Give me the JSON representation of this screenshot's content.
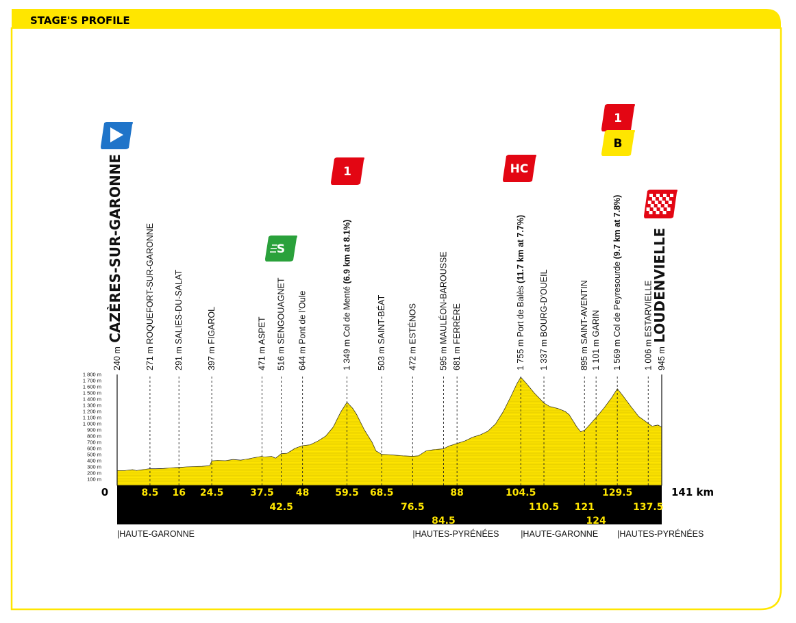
{
  "header": {
    "title": "STAGE'S PROFILE"
  },
  "colors": {
    "accent": "#ffe600",
    "profile_fill": "#ffe600",
    "strip": "#000000",
    "cat1": "#e30613",
    "hc": "#e30613",
    "sprint": "#2aa13b",
    "start": "#1f74c9",
    "bonus": "#ffe600"
  },
  "chart_data": {
    "type": "area",
    "title": "",
    "xlabel": "km",
    "ylabel": "m",
    "xlim": [
      0,
      141
    ],
    "ylim": [
      0,
      1800
    ],
    "yticks": [
      "100 m",
      "200 m",
      "300 m",
      "400 m",
      "500 m",
      "600 m",
      "700 m",
      "800 m",
      "900 m",
      "1 000 m",
      "1 100 m",
      "1 200 m",
      "1 300 m",
      "1 400 m",
      "1 500 m",
      "1 600 m",
      "1 700 m",
      "1 800 m"
    ],
    "start_km_label": "0",
    "end_km_label": "141 km",
    "profile": [
      [
        0,
        240
      ],
      [
        2,
        240
      ],
      [
        4,
        255
      ],
      [
        5,
        240
      ],
      [
        6,
        250
      ],
      [
        8.5,
        271
      ],
      [
        10,
        270
      ],
      [
        12,
        275
      ],
      [
        14,
        285
      ],
      [
        16,
        291
      ],
      [
        18,
        300
      ],
      [
        20,
        305
      ],
      [
        22,
        310
      ],
      [
        24,
        320
      ],
      [
        24.5,
        397
      ],
      [
        26,
        405
      ],
      [
        28,
        400
      ],
      [
        30,
        420
      ],
      [
        32,
        410
      ],
      [
        34,
        430
      ],
      [
        36,
        455
      ],
      [
        37.5,
        471
      ],
      [
        38,
        460
      ],
      [
        40,
        470
      ],
      [
        41,
        440
      ],
      [
        42.5,
        516
      ],
      [
        44,
        520
      ],
      [
        46,
        600
      ],
      [
        48,
        644
      ],
      [
        50,
        660
      ],
      [
        52,
        720
      ],
      [
        54,
        800
      ],
      [
        56,
        950
      ],
      [
        57,
        1080
      ],
      [
        58,
        1200
      ],
      [
        59.5,
        1349
      ],
      [
        61,
        1250
      ],
      [
        62,
        1150
      ],
      [
        64,
        900
      ],
      [
        66,
        700
      ],
      [
        67,
        560
      ],
      [
        68.5,
        503
      ],
      [
        70,
        500
      ],
      [
        72,
        490
      ],
      [
        74,
        480
      ],
      [
        76.5,
        472
      ],
      [
        78,
        480
      ],
      [
        80,
        560
      ],
      [
        82,
        580
      ],
      [
        84.5,
        595
      ],
      [
        86,
        640
      ],
      [
        88,
        681
      ],
      [
        90,
        720
      ],
      [
        92,
        780
      ],
      [
        94,
        820
      ],
      [
        96,
        880
      ],
      [
        98,
        1000
      ],
      [
        100,
        1200
      ],
      [
        102,
        1450
      ],
      [
        103.5,
        1650
      ],
      [
        104.5,
        1755
      ],
      [
        106,
        1650
      ],
      [
        108,
        1500
      ],
      [
        110.5,
        1337
      ],
      [
        112,
        1280
      ],
      [
        114,
        1250
      ],
      [
        116,
        1200
      ],
      [
        117,
        1150
      ],
      [
        118,
        1050
      ],
      [
        119,
        950
      ],
      [
        120,
        870
      ],
      [
        121,
        895
      ],
      [
        122,
        960
      ],
      [
        124,
        1101
      ],
      [
        126,
        1250
      ],
      [
        128,
        1420
      ],
      [
        129.5,
        1569
      ],
      [
        131,
        1450
      ],
      [
        133,
        1280
      ],
      [
        135,
        1120
      ],
      [
        137.5,
        1006
      ],
      [
        138.5,
        960
      ],
      [
        140,
        980
      ],
      [
        141,
        945
      ]
    ],
    "places": [
      {
        "km": 0,
        "alt": "240 m",
        "name": "CAZÈRES-SUR-GARONNE",
        "big": true
      },
      {
        "km": 8.5,
        "alt": "271 m",
        "name": "ROQUEFORT-SUR-GARONNE"
      },
      {
        "km": 16,
        "alt": "291 m",
        "name": "SALIES-DU-SALAT"
      },
      {
        "km": 24.5,
        "alt": "397 m",
        "name": "FIGAROL"
      },
      {
        "km": 37.5,
        "alt": "471 m",
        "name": "ASPET"
      },
      {
        "km": 42.5,
        "alt": "516 m",
        "name": "SENGOUAGNET"
      },
      {
        "km": 48,
        "alt": "644 m",
        "name": "Pont de l'Oule"
      },
      {
        "km": 59.5,
        "alt": "1 349 m",
        "name": "Col de Menté",
        "bold": "(6.9 km at 8.1%)"
      },
      {
        "km": 68.5,
        "alt": "503 m",
        "name": "SAINT-BÉAT"
      },
      {
        "km": 76.5,
        "alt": "472 m",
        "name": "ESTÉNOS"
      },
      {
        "km": 84.5,
        "alt": "595 m",
        "name": "MAULÉON-BAROUSSE"
      },
      {
        "km": 88,
        "alt": "681 m",
        "name": "FERRÈRE"
      },
      {
        "km": 104.5,
        "alt": "1 755 m",
        "name": "Port de Balès",
        "bold": "(11.7 km at 7.7%)"
      },
      {
        "km": 110.5,
        "alt": "1 337 m",
        "name": "BOURG-D'OUEIL"
      },
      {
        "km": 121,
        "alt": "895 m",
        "name": "SAINT-AVENTIN"
      },
      {
        "km": 124,
        "alt": "1 101 m",
        "name": "GARIN"
      },
      {
        "km": 129.5,
        "alt": "1 569 m",
        "name": "Col de Peyresourde",
        "bold": "(9.7 km at 7.8%)"
      },
      {
        "km": 137.5,
        "alt": "1 006 m",
        "name": "ESTARVIELLE"
      },
      {
        "km": 141,
        "alt": "945 m",
        "name": "LOUDENVIELLE",
        "big": true
      }
    ],
    "km_marks": [
      {
        "km": 8.5,
        "label": "8.5",
        "row": 1
      },
      {
        "km": 16,
        "label": "16",
        "row": 1
      },
      {
        "km": 24.5,
        "label": "24.5",
        "row": 1
      },
      {
        "km": 37.5,
        "label": "37.5",
        "row": 1
      },
      {
        "km": 42.5,
        "label": "42.5",
        "row": 2
      },
      {
        "km": 48,
        "label": "48",
        "row": 1
      },
      {
        "km": 59.5,
        "label": "59.5",
        "row": 1
      },
      {
        "km": 68.5,
        "label": "68.5",
        "row": 1
      },
      {
        "km": 76.5,
        "label": "76.5",
        "row": 2
      },
      {
        "km": 84.5,
        "label": "84.5",
        "row": 3
      },
      {
        "km": 88,
        "label": "88",
        "row": 1
      },
      {
        "km": 104.5,
        "label": "104.5",
        "row": 1
      },
      {
        "km": 110.5,
        "label": "110.5",
        "row": 2
      },
      {
        "km": 121,
        "label": "121",
        "row": 2
      },
      {
        "km": 124,
        "label": "124",
        "row": 3
      },
      {
        "km": 129.5,
        "label": "129.5",
        "row": 1
      },
      {
        "km": 137.5,
        "label": "137.5",
        "row": 2
      }
    ],
    "departments": [
      {
        "km": 0,
        "label": "HAUTE-GARONNE"
      },
      {
        "km": 76.5,
        "label": "HAUTES-PYRÉNÉES"
      },
      {
        "km": 104.5,
        "label": "HAUTE-GARONNE"
      },
      {
        "km": 129.5,
        "label": "HAUTES-PYRÉNÉES"
      }
    ],
    "markers": [
      {
        "km": 0,
        "type": "start",
        "label": ""
      },
      {
        "km": 42.5,
        "type": "sprint",
        "label": "S"
      },
      {
        "km": 59.5,
        "type": "cat1",
        "label": "1"
      },
      {
        "km": 104.5,
        "type": "hc",
        "label": "HC"
      },
      {
        "km": 129.5,
        "type": "cat1",
        "label": "1"
      },
      {
        "km": 129.5,
        "type": "bonus",
        "label": "B"
      },
      {
        "km": 141,
        "type": "finish",
        "label": ""
      }
    ]
  }
}
